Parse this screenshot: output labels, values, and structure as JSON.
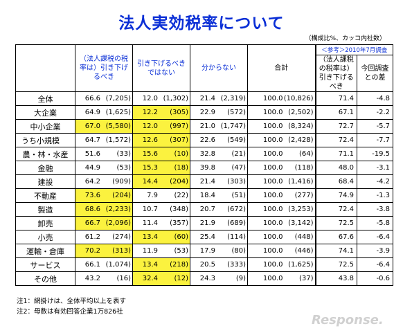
{
  "title": "法人実効税率について",
  "note_top": "（構成比%、カッコ内社数）",
  "headers": {
    "col1": "（法人課税の税率は）引き下げるべき",
    "col2": "引き下げるべきではない",
    "col3": "分からない",
    "col4": "合計",
    "ref": "＜参考＞2010年7月調査",
    "col5": "（法人課税の税率は）引き下げるべき",
    "col6": "今回調査との差"
  },
  "rows": [
    {
      "name": "全体",
      "c1p": "66.6",
      "c1n": "(7,205)",
      "c2p": "12.0",
      "c2n": "(1,302)",
      "c3p": "21.4",
      "c3n": "(2,319)",
      "c4p": "100.0",
      "c4n": "(10,826)",
      "c5": "71.4",
      "c6": "-4.8",
      "h1": false,
      "h2": false,
      "sub": false
    },
    {
      "name": "大企業",
      "c1p": "64.9",
      "c1n": "(1,625)",
      "c2p": "12.2",
      "c2n": "(305)",
      "c3p": "22.9",
      "c3n": "(572)",
      "c4p": "100.0",
      "c4n": "(2,502)",
      "c5": "67.1",
      "c6": "-2.2",
      "h1": false,
      "h2": true,
      "sub": false
    },
    {
      "name": "中小企業",
      "c1p": "67.0",
      "c1n": "(5,580)",
      "c2p": "12.0",
      "c2n": "(997)",
      "c3p": "21.0",
      "c3n": "(1,747)",
      "c4p": "100.0",
      "c4n": "(8,324)",
      "c5": "72.7",
      "c6": "-5.7",
      "h1": true,
      "h2": true,
      "sub": false
    },
    {
      "name": "うち小規模",
      "c1p": "64.7",
      "c1n": "(1,572)",
      "c2p": "12.6",
      "c2n": "(307)",
      "c3p": "22.6",
      "c3n": "(549)",
      "c4p": "100.0",
      "c4n": "(2,428)",
      "c5": "72.4",
      "c6": "-7.7",
      "h1": false,
      "h2": true,
      "sub": true
    },
    {
      "name": "農・林・水産",
      "c1p": "51.6",
      "c1n": "(33)",
      "c2p": "15.6",
      "c2n": "(10)",
      "c3p": "32.8",
      "c3n": "(21)",
      "c4p": "100.0",
      "c4n": "(64)",
      "c5": "71.1",
      "c6": "-19.5",
      "h1": false,
      "h2": true,
      "sub": false
    },
    {
      "name": "金融",
      "c1p": "44.9",
      "c1n": "(53)",
      "c2p": "15.3",
      "c2n": "(18)",
      "c3p": "39.8",
      "c3n": "(47)",
      "c4p": "100.0",
      "c4n": "(118)",
      "c5": "48.0",
      "c6": "-3.1",
      "h1": false,
      "h2": true,
      "sub": false
    },
    {
      "name": "建設",
      "c1p": "64.2",
      "c1n": "(909)",
      "c2p": "14.4",
      "c2n": "(204)",
      "c3p": "21.4",
      "c3n": "(303)",
      "c4p": "100.0",
      "c4n": "(1,416)",
      "c5": "68.4",
      "c6": "-4.2",
      "h1": false,
      "h2": true,
      "sub": false
    },
    {
      "name": "不動産",
      "c1p": "73.6",
      "c1n": "(204)",
      "c2p": "7.9",
      "c2n": "(22)",
      "c3p": "18.4",
      "c3n": "(51)",
      "c4p": "100.0",
      "c4n": "(277)",
      "c5": "74.9",
      "c6": "-1.3",
      "h1": true,
      "h2": false,
      "sub": false
    },
    {
      "name": "製造",
      "c1p": "68.6",
      "c1n": "(2,233)",
      "c2p": "10.7",
      "c2n": "(348)",
      "c3p": "20.7",
      "c3n": "(672)",
      "c4p": "100.0",
      "c4n": "(3,253)",
      "c5": "72.4",
      "c6": "-3.8",
      "h1": true,
      "h2": false,
      "sub": false
    },
    {
      "name": "卸売",
      "c1p": "66.7",
      "c1n": "(2,096)",
      "c2p": "11.4",
      "c2n": "(357)",
      "c3p": "21.9",
      "c3n": "(689)",
      "c4p": "100.0",
      "c4n": "(3,142)",
      "c5": "72.5",
      "c6": "-5.8",
      "h1": true,
      "h2": false,
      "sub": false
    },
    {
      "name": "小売",
      "c1p": "61.2",
      "c1n": "(274)",
      "c2p": "13.4",
      "c2n": "(60)",
      "c3p": "25.4",
      "c3n": "(114)",
      "c4p": "100.0",
      "c4n": "(448)",
      "c5": "67.6",
      "c6": "-6.4",
      "h1": false,
      "h2": true,
      "sub": false
    },
    {
      "name": "運輸・倉庫",
      "c1p": "70.2",
      "c1n": "(313)",
      "c2p": "11.9",
      "c2n": "(53)",
      "c3p": "17.9",
      "c3n": "(80)",
      "c4p": "100.0",
      "c4n": "(446)",
      "c5": "74.1",
      "c6": "-3.9",
      "h1": true,
      "h2": false,
      "sub": false
    },
    {
      "name": "サービス",
      "c1p": "66.1",
      "c1n": "(1,074)",
      "c2p": "13.4",
      "c2n": "(218)",
      "c3p": "20.5",
      "c3n": "(333)",
      "c4p": "100.0",
      "c4n": "(1,625)",
      "c5": "72.5",
      "c6": "-6.4",
      "h1": false,
      "h2": true,
      "sub": false
    },
    {
      "name": "その他",
      "c1p": "43.2",
      "c1n": "(16)",
      "c2p": "32.4",
      "c2n": "(12)",
      "c3p": "24.3",
      "c3n": "(9)",
      "c4p": "100.0",
      "c4n": "(37)",
      "c5": "43.8",
      "c6": "-0.6",
      "h1": false,
      "h2": true,
      "sub": false
    }
  ],
  "notes": [
    "注1：網掛けは、全体平均以上を表す",
    "注2：母数は有効回答企業1万826社"
  ],
  "logo": "Response.",
  "colors": {
    "title": "#0a2fd6",
    "highlight": "#fbf23f"
  }
}
